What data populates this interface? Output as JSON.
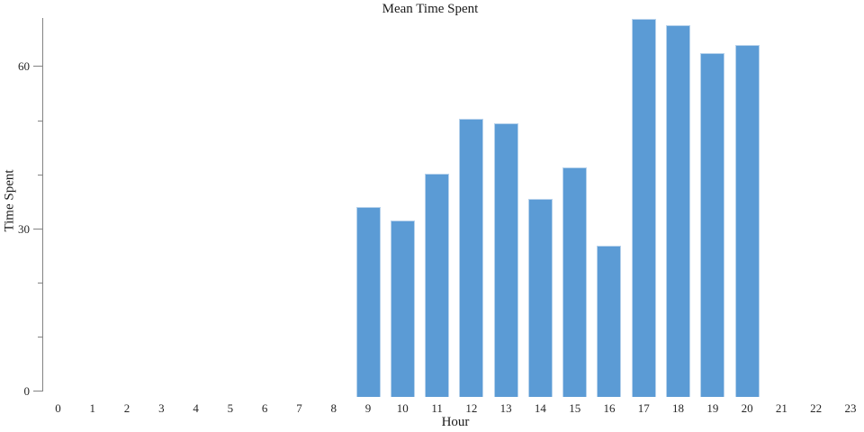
{
  "chart_data": {
    "type": "bar",
    "title": "Mean Time Spent",
    "xlabel": "Hour",
    "ylabel": "Time Spent",
    "categories": [
      0,
      1,
      2,
      3,
      4,
      5,
      6,
      7,
      8,
      9,
      10,
      11,
      12,
      13,
      14,
      15,
      16,
      17,
      18,
      19,
      20,
      21,
      22,
      23
    ],
    "values": [
      null,
      null,
      null,
      null,
      null,
      null,
      null,
      null,
      null,
      34.1,
      31.5,
      40.1,
      50.3,
      49.5,
      35.6,
      41.3,
      26.8,
      68.8,
      67.6,
      62.5,
      63.9,
      null,
      null,
      null
    ],
    "ylim": [
      0,
      69
    ],
    "yticks_major": [
      0,
      30,
      60
    ],
    "yticks_minor": [
      10,
      20,
      40,
      50
    ],
    "grid": false,
    "legend": false,
    "bar_color": "#5b9bd5",
    "bar_edge_color": "#b7d2ec",
    "axis_color": "#828282",
    "text_color": "#262626"
  }
}
